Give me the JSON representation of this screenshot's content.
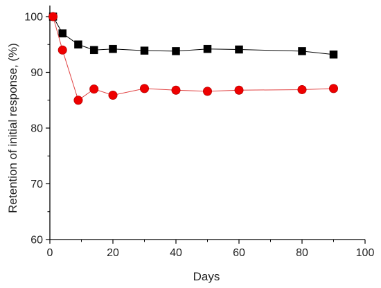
{
  "chart_data": {
    "type": "line",
    "xlabel": "Days",
    "ylabel": "Retention of initial response, (%)",
    "xlim": [
      0,
      100
    ],
    "ylim": [
      60,
      102
    ],
    "x_ticks": [
      0,
      20,
      40,
      60,
      80,
      100
    ],
    "y_ticks": [
      60,
      70,
      80,
      90,
      100
    ],
    "grid": false,
    "legend": "none",
    "series": [
      {
        "marker": "square",
        "color": "#000000",
        "line_color": "#000000",
        "points": [
          {
            "x": 1,
            "y": 100
          },
          {
            "x": 4,
            "y": 97
          },
          {
            "x": 9,
            "y": 95
          },
          {
            "x": 14,
            "y": 94
          },
          {
            "x": 20,
            "y": 94.2
          },
          {
            "x": 30,
            "y": 93.9
          },
          {
            "x": 40,
            "y": 93.8
          },
          {
            "x": 50,
            "y": 94.2
          },
          {
            "x": 60,
            "y": 94.1
          },
          {
            "x": 80,
            "y": 93.8
          },
          {
            "x": 90,
            "y": 93.2
          }
        ]
      },
      {
        "marker": "circle",
        "color": "#ee0000",
        "line_color": "#e04040",
        "points": [
          {
            "x": 1,
            "y": 100
          },
          {
            "x": 4,
            "y": 94
          },
          {
            "x": 9,
            "y": 85
          },
          {
            "x": 14,
            "y": 87
          },
          {
            "x": 20,
            "y": 85.9
          },
          {
            "x": 30,
            "y": 87.1
          },
          {
            "x": 40,
            "y": 86.8
          },
          {
            "x": 50,
            "y": 86.6
          },
          {
            "x": 60,
            "y": 86.8
          },
          {
            "x": 80,
            "y": 86.9
          },
          {
            "x": 90,
            "y": 87.1
          }
        ]
      }
    ]
  }
}
